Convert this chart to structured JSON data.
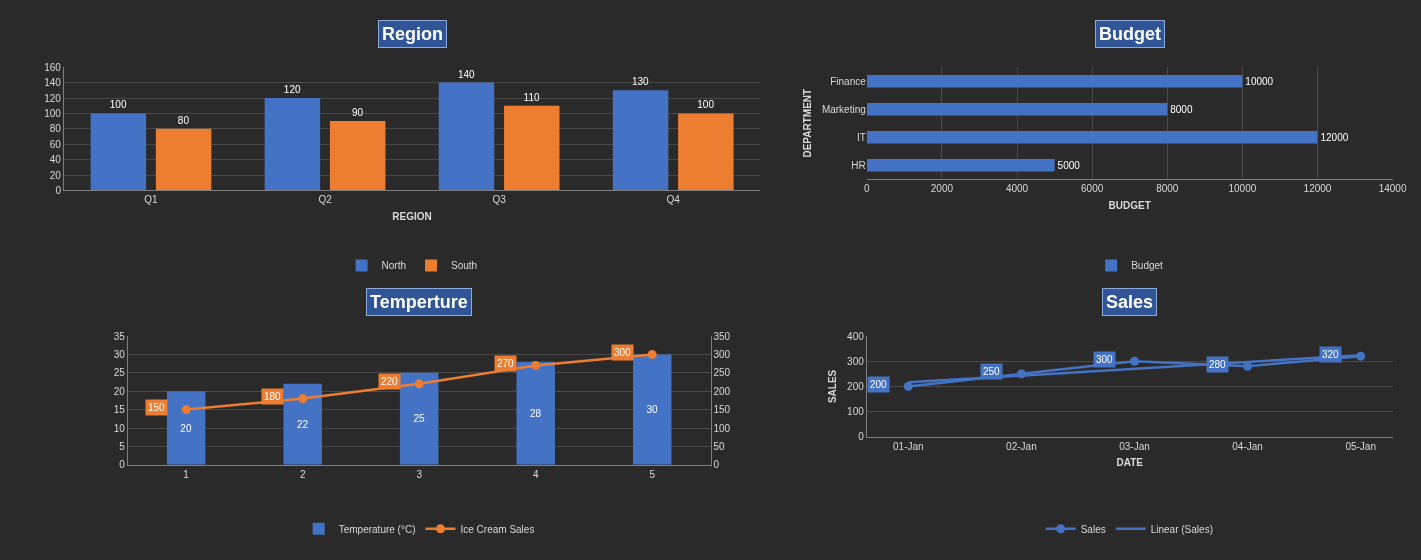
{
  "chart_data": [
    {
      "type": "bar",
      "title": "Region",
      "xlabel": "REGION",
      "categories": [
        "Q1",
        "Q2",
        "Q3",
        "Q4"
      ],
      "series": [
        {
          "name": "North",
          "color": "#4472c4",
          "values": [
            100,
            120,
            140,
            130
          ]
        },
        {
          "name": "South",
          "color": "#ed7d31",
          "values": [
            80,
            90,
            110,
            100
          ]
        }
      ],
      "ylim": [
        0,
        160
      ],
      "yticks": [
        0,
        20,
        40,
        60,
        80,
        100,
        120,
        140,
        160
      ],
      "grid": "y",
      "legend": "bottom",
      "data_labels": true
    },
    {
      "type": "bar",
      "title": "Budget",
      "orientation": "horizontal",
      "xlabel": "BUDGET",
      "ylabel": "DEPARTMENT",
      "categories": [
        "Finance",
        "Marketing",
        "IT",
        "HR"
      ],
      "series": [
        {
          "name": "Budget",
          "color": "#4472c4",
          "values": [
            10000,
            8000,
            12000,
            5000
          ]
        }
      ],
      "xlim": [
        0,
        14000
      ],
      "xticks": [
        0,
        2000,
        4000,
        6000,
        8000,
        10000,
        12000,
        14000
      ],
      "grid": "x",
      "legend": "bottom",
      "data_labels": true
    },
    {
      "type": "bar",
      "title": "Temperture",
      "categories": [
        "1",
        "2",
        "3",
        "4",
        "5"
      ],
      "series": [
        {
          "name": "Temperature (°C)",
          "color": "#4472c4",
          "values": [
            20,
            22,
            25,
            28,
            30
          ]
        },
        {
          "name": "Ice Cream Sales",
          "type": "line",
          "axis": "y2",
          "color": "#ed7d31",
          "marker": "circle",
          "values": [
            150,
            180,
            220,
            270,
            300
          ]
        }
      ],
      "ylim": [
        0,
        35
      ],
      "yticks": [
        0,
        5,
        10,
        15,
        20,
        25,
        30,
        35
      ],
      "y2lim": [
        0,
        350
      ],
      "y2ticks": [
        0,
        50,
        100,
        150,
        200,
        250,
        300,
        350
      ],
      "grid": "y",
      "legend": "bottom",
      "data_labels": true
    },
    {
      "type": "line",
      "title": "Sales",
      "xlabel": "DATE",
      "ylabel": "SALES",
      "categories": [
        "01-Jan",
        "02-Jan",
        "03-Jan",
        "04-Jan",
        "05-Jan"
      ],
      "series": [
        {
          "name": "Sales",
          "color": "#4472c4",
          "marker": "circle",
          "values": [
            200,
            250,
            300,
            280,
            320
          ]
        },
        {
          "name": "Linear (Sales)",
          "type": "line",
          "color": "#4472c4",
          "marker": "none",
          "x": [
            "01-Jan",
            "05-Jan"
          ],
          "values": [
            216,
            324
          ],
          "value_labels": [
            null,
            null
          ]
        }
      ],
      "ylim": [
        0,
        400
      ],
      "yticks": [
        0,
        100,
        200,
        300,
        400
      ],
      "grid": "y",
      "legend": "bottom",
      "data_labels": true
    }
  ]
}
